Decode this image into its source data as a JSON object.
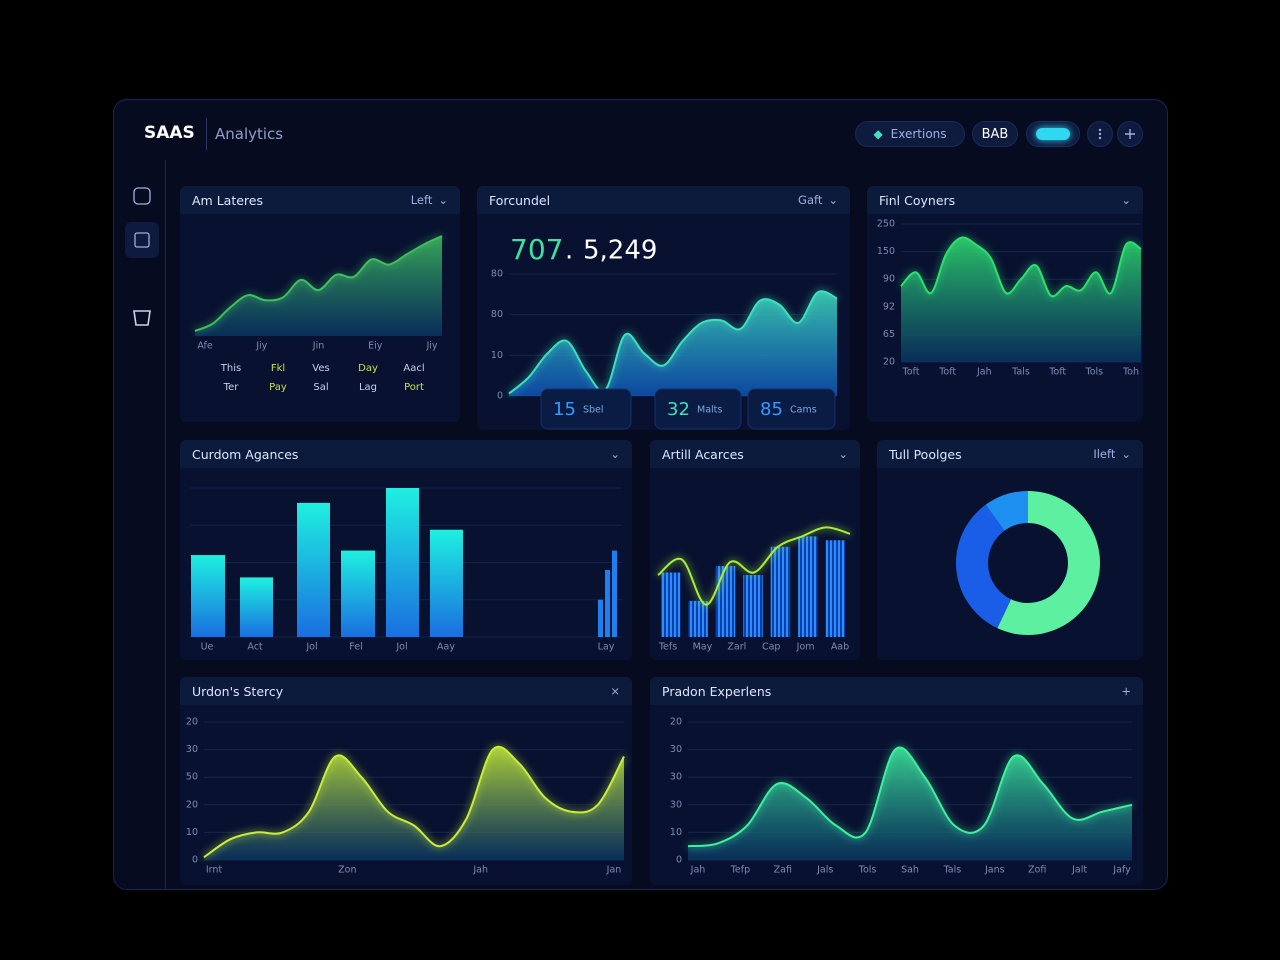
{
  "header": {
    "brand": "SAAS",
    "product": "Analytics",
    "search": "Exertions",
    "user": "BAB"
  },
  "panels": [
    {
      "title": "Am Lateres",
      "action": "Left",
      "chart": {
        "type": "area",
        "color": "#3fbf5f",
        "ylim": [
          0,
          100
        ],
        "values": [
          5,
          12,
          28,
          40,
          35,
          38,
          55,
          45,
          60,
          58,
          75,
          70,
          80,
          90,
          98
        ]
      },
      "xlabels": [
        "Afe",
        "Jiy",
        "Jin",
        "Eiy",
        "Jiy"
      ],
      "legend": [
        [
          "This",
          "Fkl",
          "Ves",
          "Day",
          "Aacl"
        ],
        [
          "Ter",
          "Pay",
          "Sal",
          "Lag",
          "Port"
        ]
      ]
    },
    {
      "title": "Forcundel",
      "action": "Gaft",
      "stats": {
        "primary": "707",
        "separator": ".",
        "secondary": "5,249"
      },
      "chart": {
        "type": "area",
        "color": "#3fe0c0",
        "ylim": [
          0,
          100
        ],
        "values": [
          2,
          15,
          35,
          45,
          20,
          5,
          50,
          35,
          25,
          45,
          60,
          62,
          55,
          78,
          75,
          60,
          85,
          80
        ]
      },
      "ylabels": [
        "80",
        "80",
        "10",
        "0"
      ],
      "badges": [
        {
          "value": "15",
          "label": "Sbel"
        },
        {
          "value": "32",
          "label": "Malts"
        },
        {
          "value": "85",
          "label": "Cams"
        }
      ]
    },
    {
      "title": "Finl Coyners",
      "chart": {
        "type": "area",
        "color": "#2fe070",
        "ylim": [
          0,
          100
        ],
        "values": [
          55,
          65,
          50,
          78,
          90,
          85,
          75,
          50,
          60,
          70,
          48,
          55,
          52,
          65,
          50,
          85,
          82
        ]
      },
      "ylabels": [
        "250",
        "150",
        "90",
        "92",
        "65",
        "20"
      ],
      "xlabels": [
        "Toft",
        "Toft",
        "Jah",
        "Tals",
        "Toft",
        "Tols",
        "Toh"
      ]
    },
    {
      "title": "Curdom Agances",
      "chart": {
        "type": "bar",
        "ylim": [
          0,
          100
        ],
        "values": [
          55,
          40,
          90,
          58,
          100,
          72
        ],
        "cluster": [
          25,
          45,
          58
        ]
      },
      "xlabels": [
        "Ue",
        "Act",
        "Jol",
        "Fel",
        "Jol",
        "Aay",
        "Lay"
      ]
    },
    {
      "title": "Artill Acarces",
      "chart": {
        "type": "bar-line",
        "ylim": [
          0,
          100
        ],
        "values": [
          50,
          28,
          55,
          48,
          70,
          78,
          75
        ],
        "line": [
          48,
          60,
          25,
          58,
          50,
          70,
          78,
          85,
          80
        ]
      },
      "xlabels": [
        "Tefs",
        "May",
        "Zarl",
        "Cap",
        "Jom",
        "Aab"
      ]
    },
    {
      "title": "Tull Poolges",
      "action": "Ileft",
      "chart": {
        "type": "donut",
        "values": [
          57,
          33,
          10
        ],
        "colors": [
          "#5cf0a0",
          "#1a5ee8",
          "#1d8ff0"
        ]
      }
    },
    {
      "title": "Urdon's Stercy",
      "action": "×",
      "chart": {
        "type": "area",
        "color": "#c8ef3a",
        "ylim": [
          0,
          100
        ],
        "values": [
          2,
          15,
          20,
          20,
          35,
          75,
          60,
          35,
          25,
          10,
          30,
          80,
          70,
          45,
          35,
          40,
          75
        ]
      },
      "ylabels": [
        "20",
        "30",
        "50",
        "20",
        "10",
        "0"
      ],
      "xlabels": [
        "Irnt",
        "Zon",
        "Jah",
        "Jan"
      ]
    },
    {
      "title": "Pradon Experlens",
      "action": "+",
      "chart": {
        "type": "area",
        "color": "#3ff0a0",
        "ylim": [
          0,
          100
        ],
        "values": [
          10,
          12,
          25,
          55,
          45,
          25,
          20,
          80,
          60,
          25,
          25,
          75,
          55,
          30,
          35,
          40
        ]
      },
      "ylabels": [
        "20",
        "30",
        "30",
        "30",
        "10",
        "0"
      ],
      "xlabels": [
        "Jah",
        "Tefp",
        "Zafi",
        "Jals",
        "Tols",
        "Sah",
        "Tals",
        "Jans",
        "Zofi",
        "Jalt",
        "Jafy"
      ]
    }
  ]
}
